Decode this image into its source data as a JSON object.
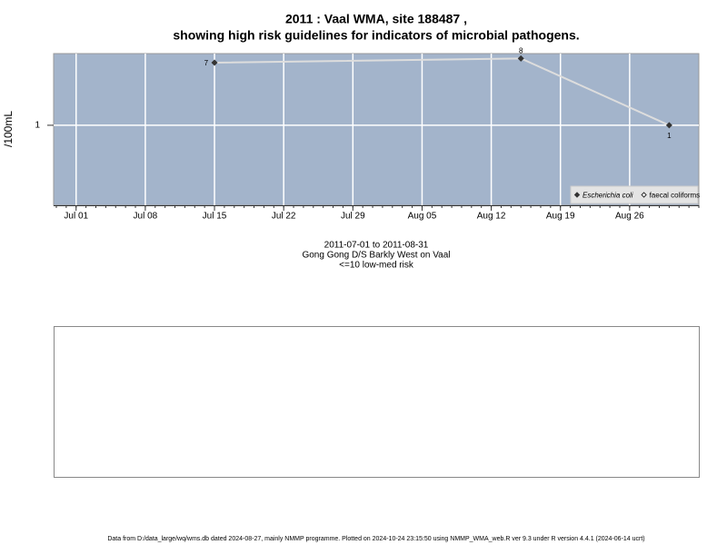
{
  "chart_data": {
    "type": "line",
    "title": "2011 : Vaal WMA, site 188487 ,",
    "subtitle": "showing high risk guidelines for indicators of microbial pathogens.",
    "y_label": "/100mL",
    "x": [
      "2011-07-15",
      "2011-08-15",
      "2011-08-30"
    ],
    "series": [
      {
        "name": "Escherichia coli",
        "color": "#333333",
        "line_color": "#dddddd",
        "values": [
          7,
          8,
          1
        ]
      },
      {
        "name": "faecal coliforms",
        "color": "#333333",
        "values": [
          null,
          null,
          null
        ]
      }
    ],
    "xlim": [
      "2011-06-29",
      "2011-09-02"
    ],
    "xticks": [
      {
        "value": "2011-07-01",
        "label": "Jul 01"
      },
      {
        "value": "2011-07-08",
        "label": "Jul 08"
      },
      {
        "value": "2011-07-15",
        "label": "Jul 15"
      },
      {
        "value": "2011-07-22",
        "label": "Jul 22"
      },
      {
        "value": "2011-07-29",
        "label": "Jul 29"
      },
      {
        "value": "2011-08-05",
        "label": "Aug 05"
      },
      {
        "value": "2011-08-12",
        "label": "Aug 12"
      },
      {
        "value": "2011-08-19",
        "label": "Aug 19"
      },
      {
        "value": "2011-08-26",
        "label": "Aug 26"
      }
    ],
    "ylim": [
      0.083,
      9.3
    ],
    "yticks": [
      1
    ],
    "log_y": true,
    "grid": true,
    "legend": "bottom-right",
    "notes": [
      "2011-07-01 to 2011-08-31",
      "Gong Gong D/S Barkly West on Vaal",
      "<=10 low-med risk"
    ],
    "footer": "Data from D:/data_large/wq/wms.db dated 2024-08-27, mainly NMMP programme. Plotted on 2024-10-24 23:15:50 using NMMP_WMA_web.R ver 9.3 under R version 4.4.1 (2024-06-14 ucrt)"
  }
}
